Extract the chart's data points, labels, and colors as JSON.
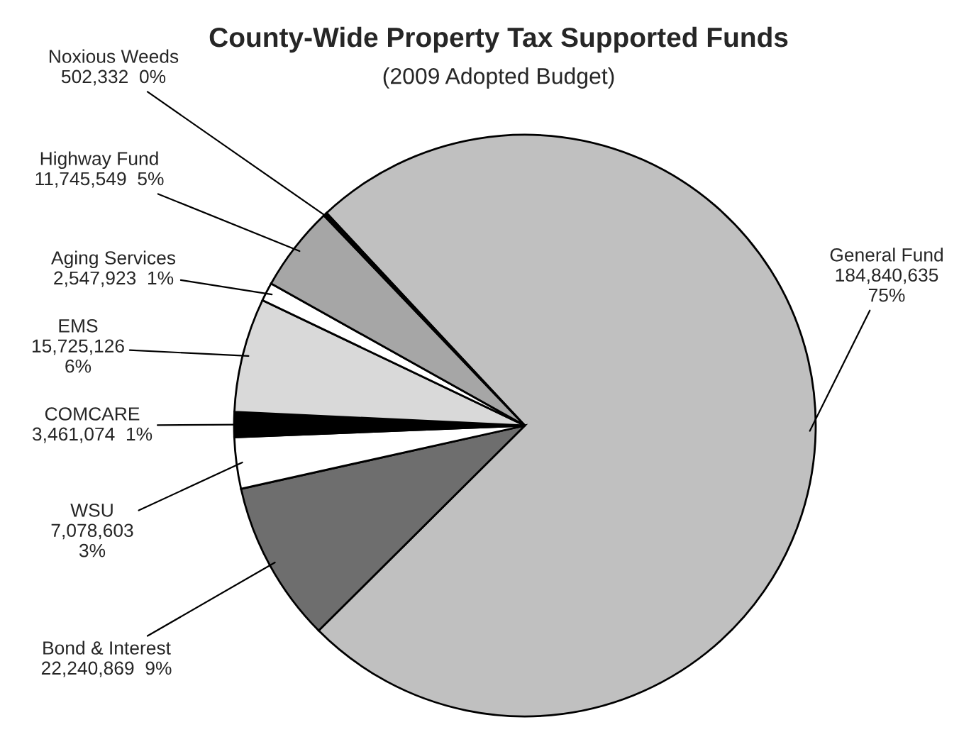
{
  "chart_data": {
    "type": "pie",
    "title": "County-Wide Property Tax Supported Funds",
    "subtitle": "(2009 Adopted Budget)",
    "categories": [
      "General Fund",
      "Bond & Interest",
      "WSU",
      "COMCARE",
      "EMS",
      "Aging Services",
      "Highway Fund",
      "Noxious Weeds"
    ],
    "values": [
      184840635,
      22240869,
      7078603,
      3461074,
      15725126,
      2547923,
      11745549,
      502332
    ],
    "value_labels": [
      "184,840,635\n75%",
      "22,240,869  9%",
      "7,078,603\n3%",
      "3,461,074  1%",
      "15,725,126\n6%",
      "2,547,923  1%",
      "11,745,549  5%",
      "502,332  0%"
    ],
    "colors": [
      "#c0c0c0",
      "#6e6e6e",
      "#ffffff",
      "#000000",
      "#d9d9d9",
      "#ffffff",
      "#a6a6a6",
      "#000000"
    ],
    "legend": false
  }
}
